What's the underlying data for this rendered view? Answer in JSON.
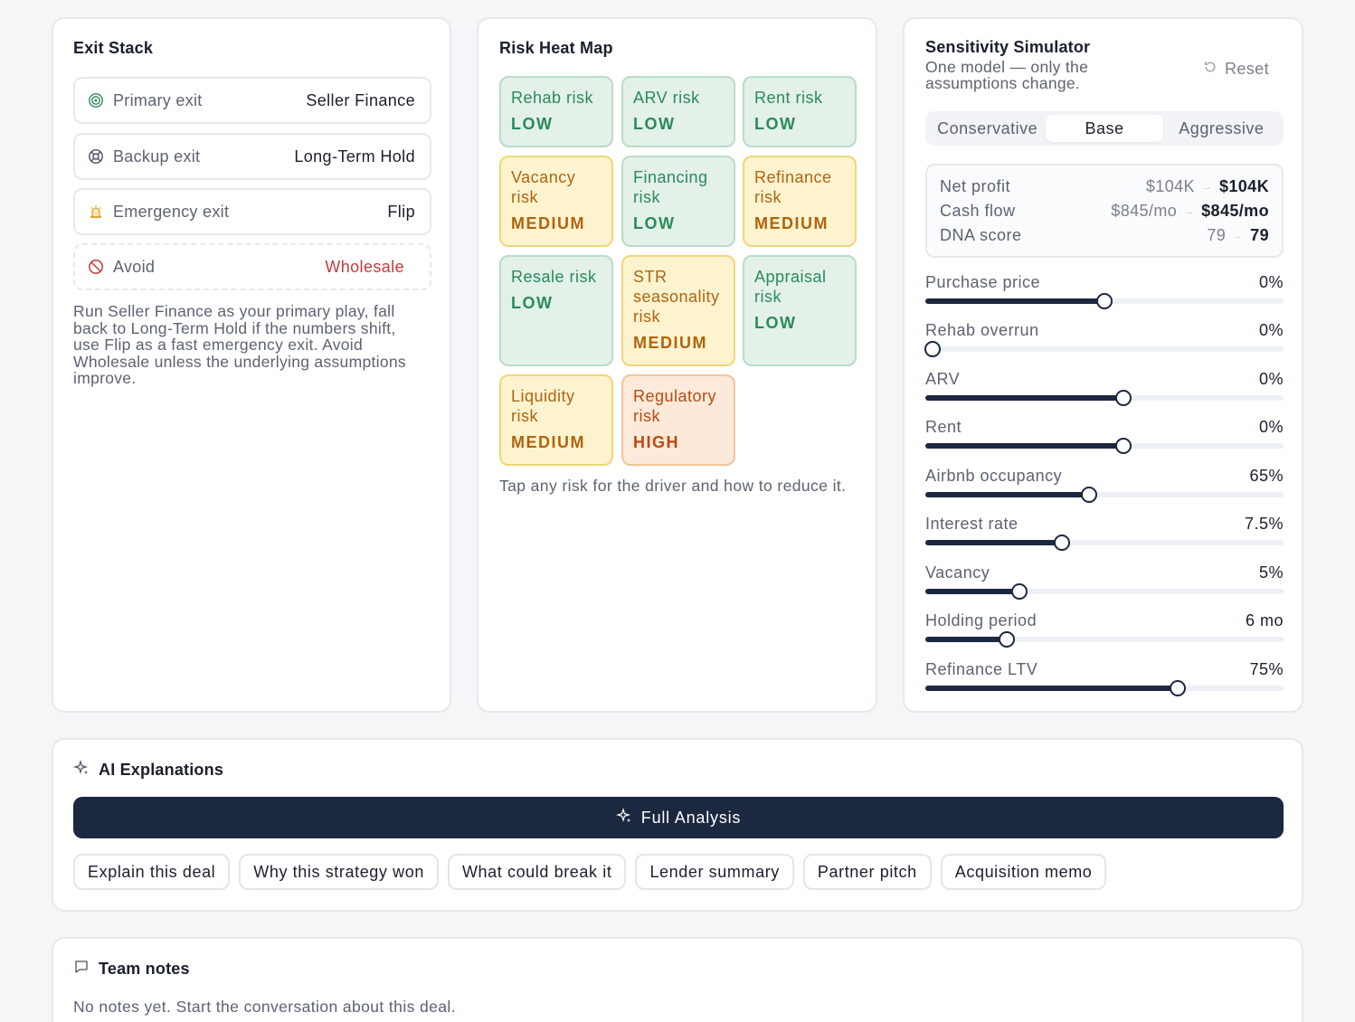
{
  "exit_stack": {
    "title": "Exit Stack",
    "rows": [
      {
        "label": "Primary exit",
        "value": "Seller Finance",
        "icon": "target-icon"
      },
      {
        "label": "Backup exit",
        "value": "Long-Term Hold",
        "icon": "lifebuoy-icon"
      },
      {
        "label": "Emergency exit",
        "value": "Flip",
        "icon": "siren-icon"
      },
      {
        "label": "Avoid",
        "value": "Wholesale",
        "icon": "ban-icon"
      }
    ],
    "description": "Run Seller Finance as your primary play, fall back to Long-Term Hold if the numbers shift, use Flip as a fast emergency exit. Avoid Wholesale unless the underlying assumptions improve."
  },
  "risk_heat_map": {
    "title": "Risk Heat Map",
    "tiles": [
      {
        "name": "Rehab risk",
        "level": "LOW"
      },
      {
        "name": "ARV risk",
        "level": "LOW"
      },
      {
        "name": "Rent risk",
        "level": "LOW"
      },
      {
        "name": "Vacancy risk",
        "level": "MEDIUM"
      },
      {
        "name": "Financing risk",
        "level": "LOW"
      },
      {
        "name": "Refinance risk",
        "level": "MEDIUM"
      },
      {
        "name": "Resale risk",
        "level": "LOW"
      },
      {
        "name": "STR seasonality risk",
        "level": "MEDIUM"
      },
      {
        "name": "Appraisal risk",
        "level": "LOW"
      },
      {
        "name": "Liquidity risk",
        "level": "MEDIUM"
      },
      {
        "name": "Regulatory risk",
        "level": "HIGH"
      }
    ],
    "hint": "Tap any risk for the driver and how to reduce it."
  },
  "sensitivity": {
    "title": "Sensitivity Simulator",
    "subtitle": "One model — only the assumptions change.",
    "reset_label": "Reset",
    "modes": [
      "Conservative",
      "Base",
      "Aggressive"
    ],
    "active_mode": "Base",
    "metrics": [
      {
        "label": "Net profit",
        "base": "$104K",
        "new": "$104K"
      },
      {
        "label": "Cash flow",
        "base": "$845/mo",
        "new": "$845/mo"
      },
      {
        "label": "DNA score",
        "base": "79",
        "new": "79"
      }
    ],
    "sliders": [
      {
        "label": "Purchase price",
        "value": "0%",
        "fraction": 0.5
      },
      {
        "label": "Rehab overrun",
        "value": "0%",
        "fraction": 0.02
      },
      {
        "label": "ARV",
        "value": "0%",
        "fraction": 0.554
      },
      {
        "label": "Rent",
        "value": "0%",
        "fraction": 0.554
      },
      {
        "label": "Airbnb occupancy",
        "value": "65%",
        "fraction": 0.457
      },
      {
        "label": "Interest rate",
        "value": "7.5%",
        "fraction": 0.381
      },
      {
        "label": "Vacancy",
        "value": "5%",
        "fraction": 0.262
      },
      {
        "label": "Holding period",
        "value": "6 mo",
        "fraction": 0.228
      },
      {
        "label": "Refinance LTV",
        "value": "75%",
        "fraction": 0.704
      }
    ]
  },
  "ai": {
    "title": "AI Explanations",
    "full_analysis_label": "Full Analysis",
    "chips": [
      "Explain this deal",
      "Why this strategy won",
      "What could break it",
      "Lender summary",
      "Partner pitch",
      "Acquisition memo"
    ]
  },
  "notes": {
    "title": "Team notes",
    "empty": "No notes yet. Start the conversation about this deal."
  }
}
